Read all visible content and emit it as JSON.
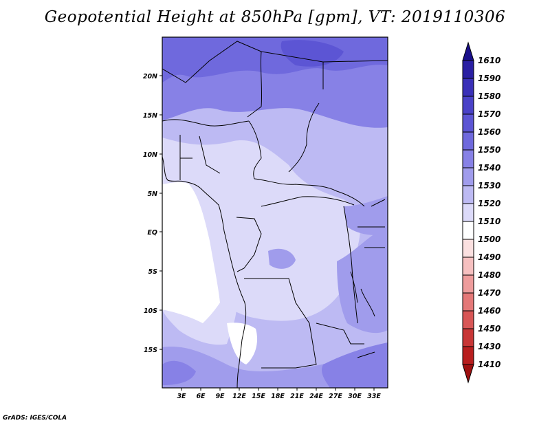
{
  "title": "Geopotential Height at 850hPa [gpm], VT: 2019110306",
  "credit": "GrADS: IGES/COLA",
  "map": {
    "lat_labels": [
      "20N",
      "15N",
      "10N",
      "5N",
      "EQ",
      "5S",
      "10S",
      "15S"
    ],
    "lon_labels": [
      "3E",
      "6E",
      "9E",
      "12E",
      "15E",
      "18E",
      "21E",
      "24E",
      "27E",
      "30E",
      "33E"
    ]
  },
  "colorbar": {
    "labels": [
      "1610",
      "1590",
      "1580",
      "1570",
      "1560",
      "1550",
      "1540",
      "1530",
      "1520",
      "1510",
      "1500",
      "1490",
      "1480",
      "1470",
      "1460",
      "1450",
      "1430",
      "1410"
    ],
    "colors": [
      "#1a0f8a",
      "#2a1fa3",
      "#3a30b8",
      "#4a42c8",
      "#5c55d4",
      "#6f69dd",
      "#8781e6",
      "#a09cec",
      "#bdbaf3",
      "#dcdaf9",
      "#ffffff",
      "#fbe0e0",
      "#f6c0c0",
      "#ee9c9c",
      "#e47878",
      "#d85656",
      "#c83636",
      "#b81e1e",
      "#9e1010"
    ]
  }
}
